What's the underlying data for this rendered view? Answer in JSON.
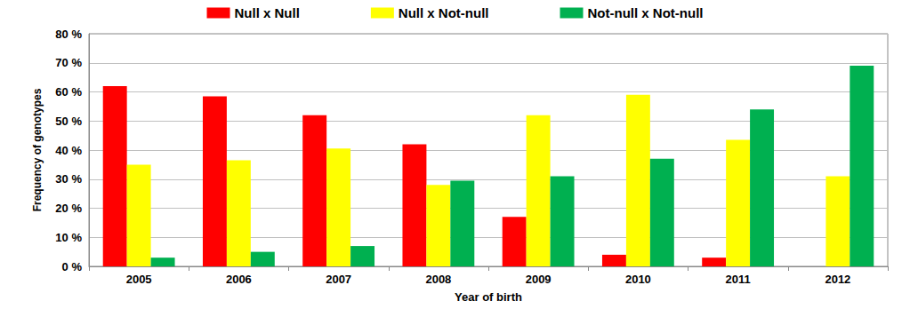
{
  "chart_data": {
    "type": "bar",
    "x_label": "Year of birth",
    "y_label": "Frequency of genotypes",
    "categories": [
      "2005",
      "2006",
      "2007",
      "2008",
      "2009",
      "2010",
      "2011",
      "2012"
    ],
    "series": [
      {
        "name": "Null x Null",
        "color": "#ff0000",
        "values": [
          62,
          58.5,
          52,
          42,
          17,
          4,
          3,
          0
        ]
      },
      {
        "name": "Null x Not-null",
        "color": "#ffff00",
        "values": [
          35,
          36.5,
          40.5,
          28,
          52,
          59,
          43.5,
          31
        ]
      },
      {
        "name": "Not-null x Not-null",
        "color": "#00b050",
        "values": [
          3,
          5,
          7,
          29.5,
          31,
          37,
          54,
          69
        ]
      }
    ],
    "ylim": [
      0,
      80
    ],
    "yticks": [
      {
        "value": 0,
        "label": "0 %"
      },
      {
        "value": 10,
        "label": "10 %"
      },
      {
        "value": 20,
        "label": "20 %"
      },
      {
        "value": 30,
        "label": "30 %"
      },
      {
        "value": 40,
        "label": "40 %"
      },
      {
        "value": 50,
        "label": "50 %"
      },
      {
        "value": 60,
        "label": "60 %"
      },
      {
        "value": 70,
        "label": "70 %"
      },
      {
        "value": 80,
        "label": "80 %"
      }
    ],
    "grid": true,
    "legend": "top"
  }
}
